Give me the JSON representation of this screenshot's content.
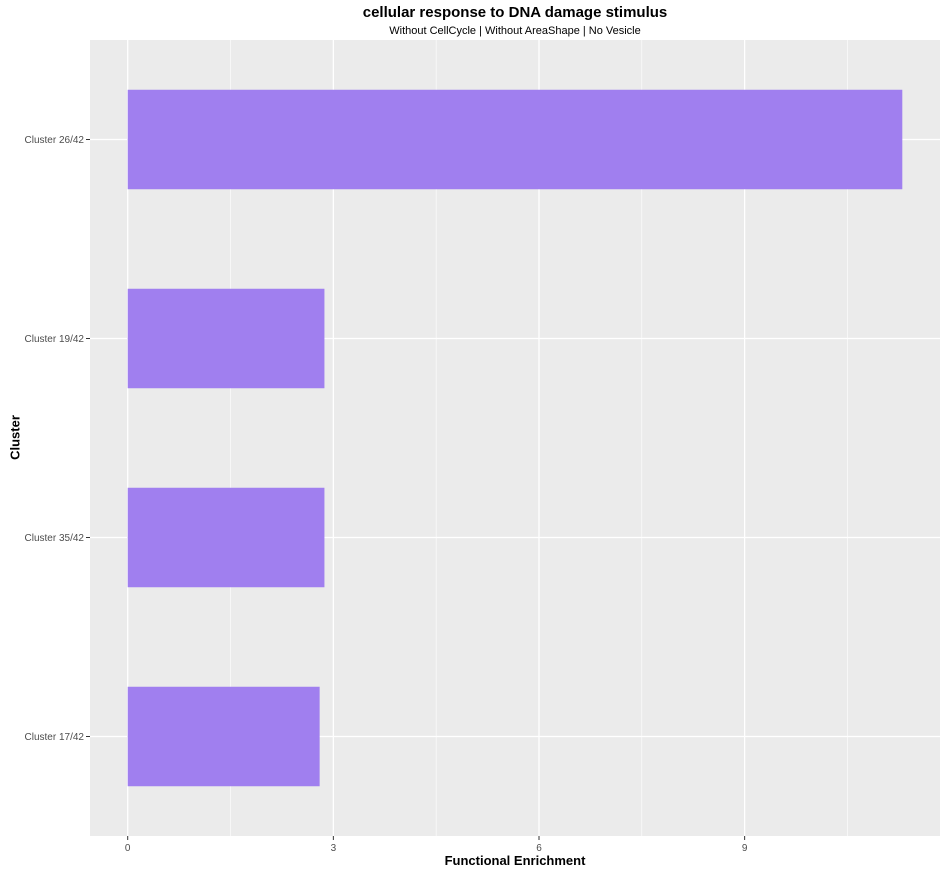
{
  "chart_data": {
    "type": "bar",
    "orientation": "horizontal",
    "title": "cellular response to DNA damage stimulus",
    "subtitle": "Without CellCycle | Without AreaShape | No Vesicle",
    "xlabel": "Functional Enrichment",
    "ylabel": "Cluster",
    "categories": [
      "Cluster 26/42",
      "Cluster 19/42",
      "Cluster 35/42",
      "Cluster 17/42"
    ],
    "values": [
      11.3,
      2.87,
      2.87,
      2.8
    ],
    "xlim": [
      -0.55,
      11.85
    ],
    "xticks": [
      0,
      3,
      6,
      9
    ],
    "xtick_labels": [
      "0",
      "3",
      "6",
      "9"
    ],
    "grid": true,
    "bar_color": "#A07FEF",
    "panel_background": "#EBEBEB",
    "grid_color": "#FFFFFF"
  }
}
